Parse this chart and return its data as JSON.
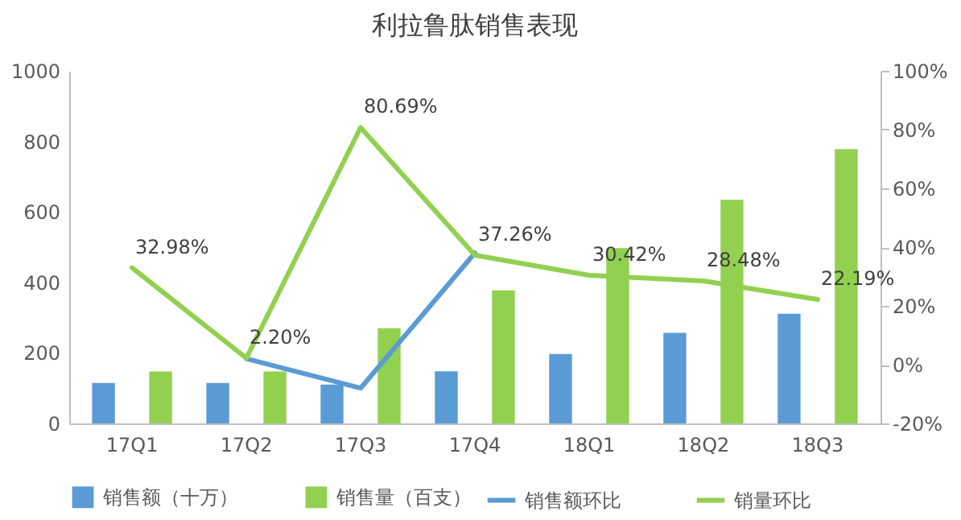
{
  "chart_data": {
    "type": "bar",
    "title": "利拉鲁肽销售表现",
    "categories": [
      "17Q1",
      "17Q2",
      "17Q3",
      "17Q4",
      "18Q1",
      "18Q2",
      "18Q3"
    ],
    "series": [
      {
        "name": "销售额（十万）",
        "type": "bar",
        "color": "#5b9bd5",
        "values": [
          115,
          115,
          110,
          148,
          197,
          257,
          311
        ]
      },
      {
        "name": "销售量（百支）",
        "type": "bar",
        "color": "#92d050",
        "values": [
          147,
          147,
          270,
          377,
          497,
          634,
          778
        ]
      },
      {
        "name": "销售额环比",
        "type": "line",
        "axis": "y2",
        "color": "#5b9bd5",
        "values": [
          null,
          2,
          -8,
          38,
          null,
          null,
          null
        ]
      },
      {
        "name": "销量环比",
        "type": "line",
        "axis": "y2",
        "color": "#92d050",
        "values": [
          32.98,
          2.2,
          80.69,
          37.26,
          30.42,
          28.48,
          22.19
        ],
        "value_labels": [
          "32.98%",
          "2.20%",
          "80.69%",
          "37.26%",
          "30.42%",
          "28.48%",
          "22.19%"
        ]
      }
    ],
    "ylim": [
      0,
      1000
    ],
    "yticks": [
      0,
      200,
      400,
      600,
      800,
      1000
    ],
    "y2lim": [
      -20,
      100
    ],
    "y2ticks": [
      {
        "value": -20,
        "label": "-20%"
      },
      {
        "value": 0,
        "label": "0%"
      },
      {
        "value": 20,
        "label": "20%"
      },
      {
        "value": 40,
        "label": "40%"
      },
      {
        "value": 60,
        "label": "60%"
      },
      {
        "value": 80,
        "label": "80%"
      },
      {
        "value": 100,
        "label": "100%"
      }
    ],
    "grid": false,
    "legend": "bottom"
  }
}
